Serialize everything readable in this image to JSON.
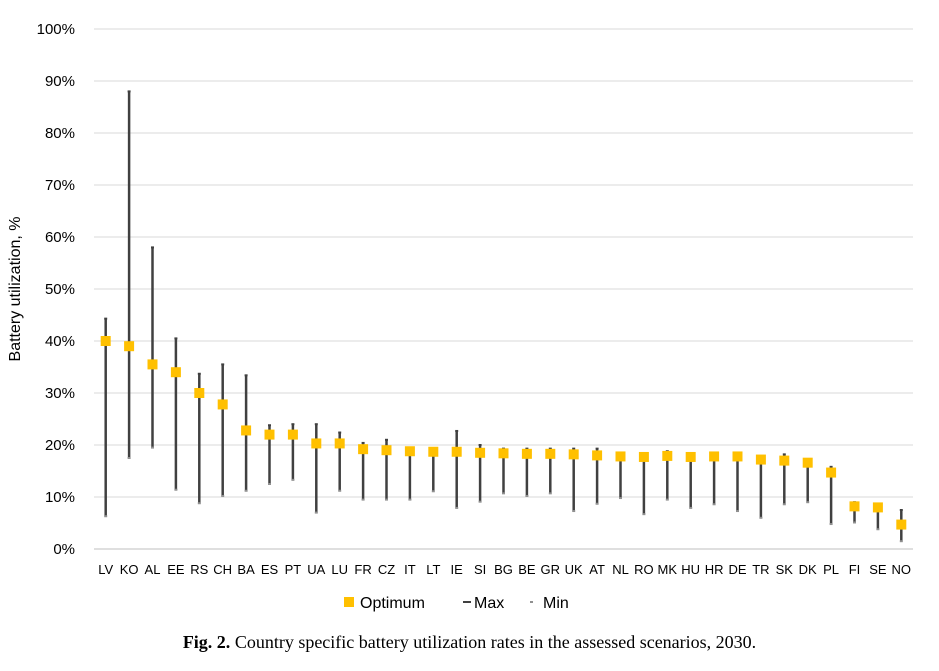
{
  "caption": {
    "label": "Fig. 2.",
    "text": "Country specific battery utilization rates in the assessed scenarios, 2030."
  },
  "legend": {
    "optimum": "Optimum",
    "max": "Max",
    "min": "Min"
  },
  "colors": {
    "optimum": "#FFC000",
    "range": "#404040",
    "grid": "#D9D9D9"
  },
  "chart_data": {
    "type": "range-with-markers",
    "title": "",
    "xlabel": "",
    "ylabel": "Battery utilization, %",
    "ylim": [
      0,
      100
    ],
    "yticks": [
      "0%",
      "10%",
      "20%",
      "30%",
      "40%",
      "50%",
      "60%",
      "70%",
      "80%",
      "90%",
      "100%"
    ],
    "grid": true,
    "legend_position": "bottom",
    "categories": [
      "LV",
      "KO",
      "AL",
      "EE",
      "RS",
      "CH",
      "BA",
      "ES",
      "PT",
      "UA",
      "LU",
      "FR",
      "CZ",
      "IT",
      "LT",
      "IE",
      "SI",
      "BG",
      "BE",
      "GR",
      "UK",
      "AT",
      "NL",
      "RO",
      "MK",
      "HU",
      "HR",
      "DE",
      "TR",
      "SK",
      "DK",
      "PL",
      "FI",
      "SE",
      "NO"
    ],
    "series": [
      {
        "name": "Optimum",
        "values": [
          40,
          39,
          35.5,
          34,
          30,
          27.8,
          22.8,
          22,
          22,
          20.3,
          20.3,
          19.2,
          19,
          18.8,
          18.7,
          18.7,
          18.5,
          18.4,
          18.3,
          18.3,
          18.2,
          18,
          17.8,
          17.7,
          17.9,
          17.7,
          17.8,
          17.8,
          17.2,
          17,
          16.6,
          14.7,
          8.2,
          8,
          4.7
        ]
      },
      {
        "name": "Max",
        "values": [
          44.3,
          88,
          58,
          40.5,
          33.7,
          35.5,
          33.4,
          23.8,
          24,
          24,
          22.4,
          20.4,
          21,
          19.5,
          19.3,
          22.7,
          20,
          19.3,
          19.3,
          19.3,
          19.3,
          19.3,
          18.3,
          18.2,
          18.8,
          18.3,
          18.3,
          18.3,
          17.5,
          18.2,
          16.8,
          15.8,
          9,
          8.3,
          7.5
        ]
      },
      {
        "name": "Min",
        "values": [
          6.3,
          17.5,
          19.5,
          11.4,
          8.8,
          10.2,
          11.2,
          12.5,
          13.3,
          7,
          11.2,
          9.5,
          9.5,
          9.5,
          11.1,
          7.9,
          9.1,
          10.7,
          10.2,
          10.7,
          7.3,
          8.7,
          9.8,
          6.7,
          9.5,
          7.9,
          8.6,
          7.3,
          6,
          8.6,
          9,
          4.8,
          5.1,
          3.8,
          1.5
        ]
      }
    ]
  }
}
